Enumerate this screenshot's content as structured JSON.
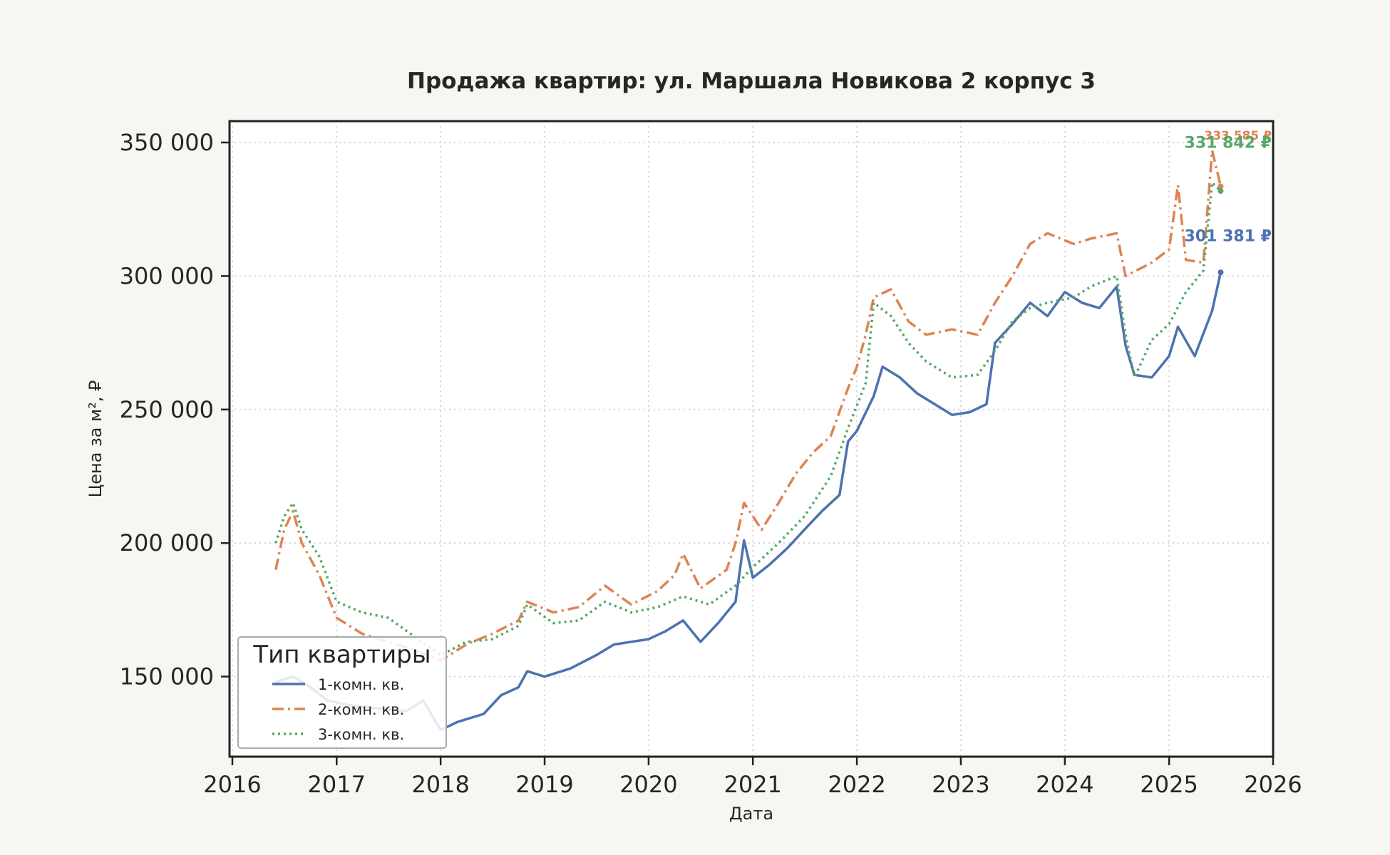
{
  "chart_data": {
    "type": "line",
    "title": "Продажа квартир: ул. Маршала Новикова 2 корпус 3",
    "xlabel": "Дата",
    "ylabel": "Цена за м², ₽",
    "xlim": [
      "2016-01-01",
      "2026-01-01"
    ],
    "ylim": [
      120000,
      358000
    ],
    "x_ticks": [
      "2016",
      "2017",
      "2018",
      "2019",
      "2020",
      "2021",
      "2022",
      "2023",
      "2024",
      "2025",
      "2026"
    ],
    "y_ticks": [
      150000,
      200000,
      250000,
      300000,
      350000
    ],
    "y_tick_labels": [
      "150 000",
      "200 000",
      "250 000",
      "300 000",
      "350 000"
    ],
    "grid": true,
    "legend": {
      "title": "Тип квартиры",
      "placement": "lower-left"
    },
    "series": [
      {
        "name": "1-комн. кв.",
        "color": "#4c72b0",
        "style": "solid",
        "end_label": "301 381 ₽",
        "points": [
          [
            "2016-06-01",
            148000
          ],
          [
            "2016-08-01",
            150000
          ],
          [
            "2016-10-01",
            146000
          ],
          [
            "2016-12-01",
            141000
          ],
          [
            "2017-03-01",
            139000
          ],
          [
            "2017-06-01",
            138000
          ],
          [
            "2017-09-01",
            137000
          ],
          [
            "2017-11-01",
            141000
          ],
          [
            "2018-01-01",
            130000
          ],
          [
            "2018-03-01",
            133000
          ],
          [
            "2018-06-01",
            136000
          ],
          [
            "2018-08-01",
            143000
          ],
          [
            "2018-10-01",
            146000
          ],
          [
            "2018-11-01",
            152000
          ],
          [
            "2019-01-01",
            150000
          ],
          [
            "2019-04-01",
            153000
          ],
          [
            "2019-07-01",
            158000
          ],
          [
            "2019-09-01",
            162000
          ],
          [
            "2019-11-01",
            163000
          ],
          [
            "2020-01-01",
            164000
          ],
          [
            "2020-03-01",
            167000
          ],
          [
            "2020-05-01",
            171000
          ],
          [
            "2020-07-01",
            163000
          ],
          [
            "2020-09-01",
            170000
          ],
          [
            "2020-11-01",
            178000
          ],
          [
            "2020-12-01",
            201000
          ],
          [
            "2021-01-01",
            187000
          ],
          [
            "2021-03-01",
            192000
          ],
          [
            "2021-05-01",
            198000
          ],
          [
            "2021-07-01",
            205000
          ],
          [
            "2021-09-01",
            212000
          ],
          [
            "2021-11-01",
            218000
          ],
          [
            "2021-12-01",
            238000
          ],
          [
            "2022-01-01",
            242000
          ],
          [
            "2022-03-01",
            255000
          ],
          [
            "2022-04-01",
            266000
          ],
          [
            "2022-06-01",
            262000
          ],
          [
            "2022-08-01",
            256000
          ],
          [
            "2022-10-01",
            252000
          ],
          [
            "2022-12-01",
            248000
          ],
          [
            "2023-02-01",
            249000
          ],
          [
            "2023-04-01",
            252000
          ],
          [
            "2023-05-01",
            275000
          ],
          [
            "2023-07-01",
            282000
          ],
          [
            "2023-09-01",
            290000
          ],
          [
            "2023-11-01",
            285000
          ],
          [
            "2024-01-01",
            294000
          ],
          [
            "2024-03-01",
            290000
          ],
          [
            "2024-05-01",
            288000
          ],
          [
            "2024-07-01",
            296000
          ],
          [
            "2024-08-01",
            274000
          ],
          [
            "2024-09-01",
            263000
          ],
          [
            "2024-11-01",
            262000
          ],
          [
            "2025-01-01",
            270000
          ],
          [
            "2025-02-01",
            281000
          ],
          [
            "2025-04-01",
            270000
          ],
          [
            "2025-06-01",
            287000
          ],
          [
            "2025-07-01",
            301381
          ]
        ]
      },
      {
        "name": "2-комн. кв.",
        "color": "#dd8452",
        "style": "dashdot",
        "end_label": "333 585 ₽",
        "points": [
          [
            "2016-06-01",
            190000
          ],
          [
            "2016-07-01",
            205000
          ],
          [
            "2016-08-01",
            212000
          ],
          [
            "2016-09-01",
            200000
          ],
          [
            "2016-11-01",
            188000
          ],
          [
            "2017-01-01",
            172000
          ],
          [
            "2017-04-01",
            166000
          ],
          [
            "2017-07-01",
            163000
          ],
          [
            "2017-10-01",
            160000
          ],
          [
            "2018-01-01",
            156000
          ],
          [
            "2018-04-01",
            162000
          ],
          [
            "2018-07-01",
            166000
          ],
          [
            "2018-10-01",
            171000
          ],
          [
            "2018-11-01",
            178000
          ],
          [
            "2019-02-01",
            174000
          ],
          [
            "2019-05-01",
            176000
          ],
          [
            "2019-08-01",
            184000
          ],
          [
            "2019-11-01",
            177000
          ],
          [
            "2020-02-01",
            182000
          ],
          [
            "2020-04-01",
            188000
          ],
          [
            "2020-05-01",
            196000
          ],
          [
            "2020-07-01",
            183000
          ],
          [
            "2020-10-01",
            190000
          ],
          [
            "2020-11-01",
            200000
          ],
          [
            "2020-12-01",
            215000
          ],
          [
            "2021-02-01",
            205000
          ],
          [
            "2021-04-01",
            215000
          ],
          [
            "2021-06-01",
            226000
          ],
          [
            "2021-08-01",
            234000
          ],
          [
            "2021-10-01",
            240000
          ],
          [
            "2021-12-01",
            258000
          ],
          [
            "2022-01-01",
            266000
          ],
          [
            "2022-02-01",
            278000
          ],
          [
            "2022-03-01",
            292000
          ],
          [
            "2022-05-01",
            295000
          ],
          [
            "2022-07-01",
            283000
          ],
          [
            "2022-09-01",
            278000
          ],
          [
            "2022-12-01",
            280000
          ],
          [
            "2023-03-01",
            278000
          ],
          [
            "2023-05-01",
            290000
          ],
          [
            "2023-07-01",
            300000
          ],
          [
            "2023-09-01",
            312000
          ],
          [
            "2023-11-01",
            316000
          ],
          [
            "2024-02-01",
            312000
          ],
          [
            "2024-04-01",
            314000
          ],
          [
            "2024-07-01",
            316000
          ],
          [
            "2024-08-01",
            300000
          ],
          [
            "2024-11-01",
            305000
          ],
          [
            "2025-01-01",
            310000
          ],
          [
            "2025-02-01",
            334000
          ],
          [
            "2025-03-01",
            306000
          ],
          [
            "2025-05-01",
            305000
          ],
          [
            "2025-06-01",
            347000
          ],
          [
            "2025-07-01",
            333585
          ]
        ]
      },
      {
        "name": "3-комн. кв.",
        "color": "#55a868",
        "style": "dotted",
        "end_label": "331 842 ₽",
        "points": [
          [
            "2016-06-01",
            200000
          ],
          [
            "2016-07-01",
            210000
          ],
          [
            "2016-08-01",
            215000
          ],
          [
            "2016-09-01",
            205000
          ],
          [
            "2016-11-01",
            195000
          ],
          [
            "2017-01-01",
            178000
          ],
          [
            "2017-04-01",
            174000
          ],
          [
            "2017-07-01",
            172000
          ],
          [
            "2017-10-01",
            165000
          ],
          [
            "2018-01-01",
            158000
          ],
          [
            "2018-04-01",
            163000
          ],
          [
            "2018-07-01",
            164000
          ],
          [
            "2018-10-01",
            169000
          ],
          [
            "2018-11-01",
            177000
          ],
          [
            "2019-02-01",
            170000
          ],
          [
            "2019-05-01",
            171000
          ],
          [
            "2019-08-01",
            178000
          ],
          [
            "2019-11-01",
            174000
          ],
          [
            "2020-02-01",
            176000
          ],
          [
            "2020-05-01",
            180000
          ],
          [
            "2020-08-01",
            177000
          ],
          [
            "2020-11-01",
            184000
          ],
          [
            "2021-01-01",
            191000
          ],
          [
            "2021-04-01",
            200000
          ],
          [
            "2021-07-01",
            210000
          ],
          [
            "2021-10-01",
            225000
          ],
          [
            "2021-12-01",
            243000
          ],
          [
            "2022-02-01",
            260000
          ],
          [
            "2022-03-01",
            290000
          ],
          [
            "2022-05-01",
            285000
          ],
          [
            "2022-07-01",
            275000
          ],
          [
            "2022-09-01",
            268000
          ],
          [
            "2022-12-01",
            262000
          ],
          [
            "2023-03-01",
            263000
          ],
          [
            "2023-05-01",
            272000
          ],
          [
            "2023-07-01",
            283000
          ],
          [
            "2023-09-01",
            288000
          ],
          [
            "2023-11-01",
            290000
          ],
          [
            "2024-02-01",
            292000
          ],
          [
            "2024-04-01",
            296000
          ],
          [
            "2024-07-01",
            300000
          ],
          [
            "2024-08-01",
            278000
          ],
          [
            "2024-09-01",
            262000
          ],
          [
            "2024-11-01",
            276000
          ],
          [
            "2025-01-01",
            282000
          ],
          [
            "2025-03-01",
            294000
          ],
          [
            "2025-05-01",
            302000
          ],
          [
            "2025-06-01",
            335000
          ],
          [
            "2025-07-01",
            331842
          ]
        ]
      }
    ]
  }
}
